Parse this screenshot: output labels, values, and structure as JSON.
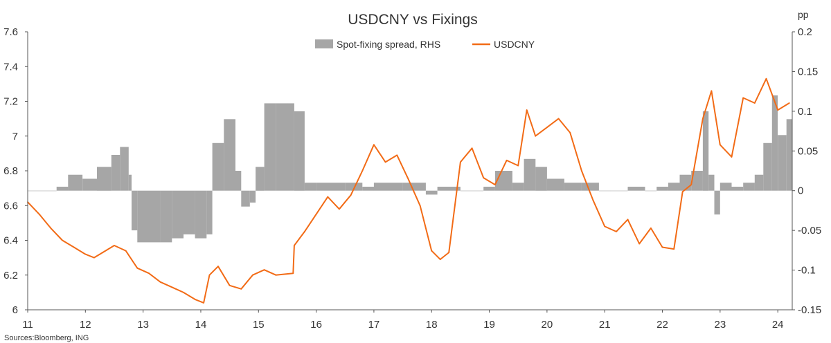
{
  "chart_data": {
    "type": "bar+line",
    "title": "USDCNY vs Fixings",
    "source": "Sources:Bloomberg, ING",
    "right_axis_unit": "pp",
    "legend_position": "top",
    "grid": false,
    "x_ticks": [
      "11",
      "12",
      "13",
      "14",
      "15",
      "16",
      "17",
      "18",
      "19",
      "20",
      "21",
      "22",
      "23",
      "24"
    ],
    "x_range": [
      2011.0,
      2024.25
    ],
    "left_axis": {
      "range": [
        6.0,
        7.6
      ],
      "ticks": [
        "6",
        "6.2",
        "6.4",
        "6.6",
        "6.8",
        "7",
        "7.2",
        "7.4",
        "7.6"
      ]
    },
    "right_axis": {
      "range": [
        -0.15,
        0.2
      ],
      "ticks": [
        "-0.15",
        "-0.1",
        "-0.05",
        "0",
        "0.05",
        "0.1",
        "0.15",
        "0.2"
      ]
    },
    "series": [
      {
        "name": "Spot-fixing spread, RHS",
        "type": "bar",
        "axis": "right",
        "color": "#a6a6a6",
        "x": [
          2011.0,
          2011.5,
          2011.7,
          2011.95,
          2012.2,
          2012.45,
          2012.6,
          2012.75,
          2012.8,
          2012.9,
          2013.1,
          2013.3,
          2013.5,
          2013.7,
          2013.9,
          2014.1,
          2014.2,
          2014.4,
          2014.6,
          2014.7,
          2014.85,
          2014.95,
          2015.1,
          2015.3,
          2015.5,
          2015.62,
          2015.8,
          2016.0,
          2016.5,
          2016.8,
          2017.0,
          2017.5,
          2017.9,
          2018.1,
          2018.5,
          2018.9,
          2019.1,
          2019.4,
          2019.6,
          2019.8,
          2020.0,
          2020.3,
          2020.6,
          2020.9,
          2021.1,
          2021.4,
          2021.7,
          2021.9,
          2022.1,
          2022.3,
          2022.5,
          2022.7,
          2022.8,
          2022.9,
          2023.0,
          2023.2,
          2023.4,
          2023.6,
          2023.75,
          2023.9,
          2024.0,
          2024.15
        ],
        "values": [
          0.0,
          0.005,
          0.02,
          0.015,
          0.03,
          0.045,
          0.055,
          0.02,
          -0.05,
          -0.065,
          -0.065,
          -0.065,
          -0.06,
          -0.055,
          -0.06,
          -0.055,
          0.06,
          0.09,
          0.025,
          -0.02,
          -0.015,
          0.03,
          0.11,
          0.11,
          0.11,
          0.1,
          0.01,
          0.01,
          0.01,
          0.005,
          0.01,
          0.01,
          -0.005,
          0.005,
          0.0,
          0.005,
          0.025,
          0.01,
          0.04,
          0.03,
          0.015,
          0.01,
          0.01,
          0.0,
          0.0,
          0.005,
          0.0,
          0.005,
          0.01,
          0.02,
          0.025,
          0.1,
          0.02,
          -0.03,
          0.01,
          0.005,
          0.01,
          0.02,
          0.06,
          0.12,
          0.07,
          0.09
        ]
      },
      {
        "name": "USDCNY",
        "type": "line",
        "axis": "left",
        "color": "#f26b16",
        "x": [
          2011.0,
          2011.2,
          2011.4,
          2011.6,
          2011.8,
          2012.0,
          2012.15,
          2012.3,
          2012.5,
          2012.7,
          2012.9,
          2013.1,
          2013.3,
          2013.5,
          2013.7,
          2013.9,
          2014.05,
          2014.15,
          2014.3,
          2014.5,
          2014.7,
          2014.9,
          2015.1,
          2015.3,
          2015.6,
          2015.62,
          2015.8,
          2016.0,
          2016.2,
          2016.4,
          2016.6,
          2016.8,
          2017.0,
          2017.2,
          2017.4,
          2017.6,
          2017.8,
          2018.0,
          2018.15,
          2018.3,
          2018.5,
          2018.7,
          2018.9,
          2019.1,
          2019.3,
          2019.5,
          2019.65,
          2019.8,
          2020.0,
          2020.2,
          2020.4,
          2020.6,
          2020.8,
          2021.0,
          2021.2,
          2021.4,
          2021.6,
          2021.8,
          2022.0,
          2022.2,
          2022.35,
          2022.5,
          2022.7,
          2022.85,
          2023.0,
          2023.2,
          2023.4,
          2023.6,
          2023.8,
          2024.0,
          2024.2
        ],
        "values": [
          6.62,
          6.55,
          6.47,
          6.4,
          6.36,
          6.32,
          6.3,
          6.33,
          6.37,
          6.34,
          6.24,
          6.21,
          6.16,
          6.13,
          6.1,
          6.06,
          6.04,
          6.2,
          6.25,
          6.14,
          6.12,
          6.2,
          6.23,
          6.2,
          6.21,
          6.37,
          6.45,
          6.55,
          6.65,
          6.58,
          6.66,
          6.8,
          6.95,
          6.85,
          6.89,
          6.75,
          6.6,
          6.34,
          6.29,
          6.33,
          6.85,
          6.93,
          6.76,
          6.72,
          6.86,
          6.83,
          7.15,
          7.0,
          7.05,
          7.1,
          7.02,
          6.8,
          6.63,
          6.48,
          6.45,
          6.52,
          6.38,
          6.47,
          6.36,
          6.35,
          6.68,
          6.72,
          7.1,
          7.26,
          6.95,
          6.88,
          7.22,
          7.19,
          7.33,
          7.15,
          7.19
        ]
      }
    ]
  }
}
